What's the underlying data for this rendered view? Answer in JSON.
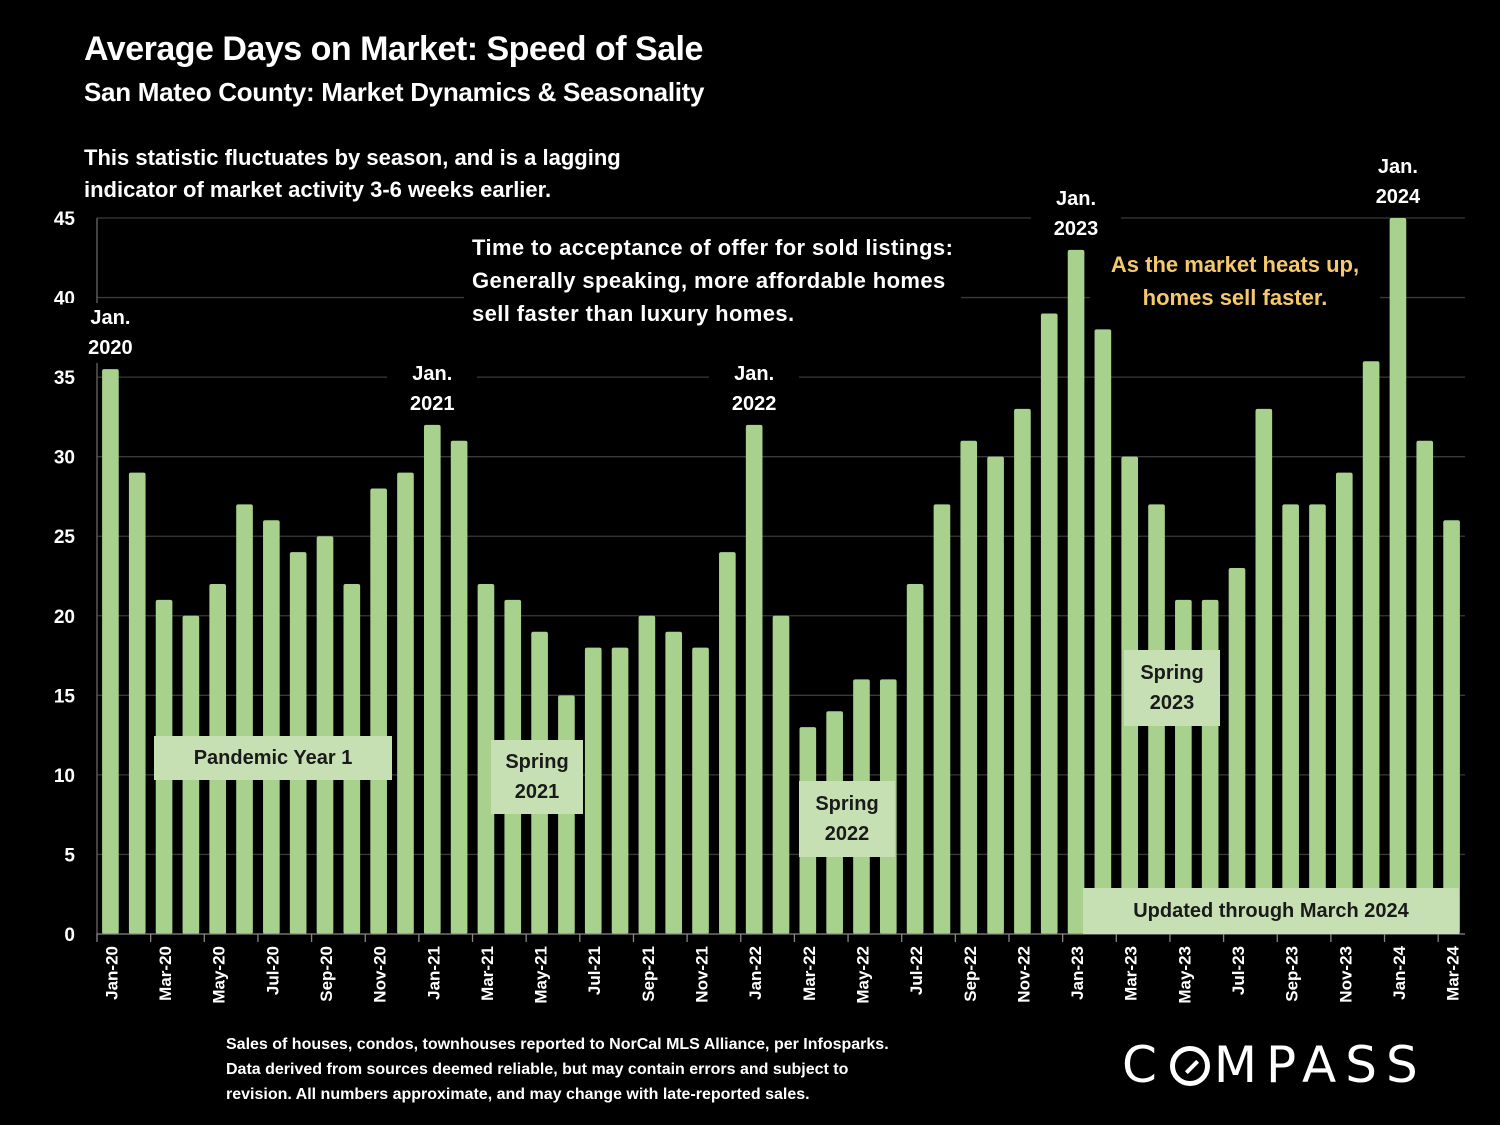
{
  "header": {
    "title": "Average Days on Market:  Speed of Sale",
    "subtitle": "San Mateo County: Market Dynamics & Seasonality"
  },
  "notes": {
    "left_line1": "This statistic fluctuates by season, and is a lagging",
    "left_line2": "indicator of market activity 3-6 weeks earlier.",
    "mid_line1": "Time to acceptance of offer for sold listings:",
    "mid_line2": "Generally speaking, more affordable homes",
    "mid_line3": "sell faster than luxury homes.",
    "gold_line1": "As the market heats up,",
    "gold_line2": "homes sell faster."
  },
  "footnote": {
    "line1": "Sales of houses, condos, townhouses reported to NorCal MLS Alliance, per Infosparks.",
    "line2": "Data derived from sources deemed reliable, but may contain errors and subject to",
    "line3": "revision. All numbers approximate, and may change with late-reported sales."
  },
  "logo": {
    "text_before": "C",
    "text_after": "MPASS"
  },
  "chart_data": {
    "type": "bar",
    "title": "Average Days on Market:  Speed of Sale",
    "xlabel": "",
    "ylabel": "",
    "ylim": [
      0,
      45
    ],
    "yticks": [
      0,
      5,
      10,
      15,
      20,
      25,
      30,
      35,
      40,
      45
    ],
    "grid": true,
    "bar_color": "#a9d18e",
    "categories": [
      "Jan-20",
      "Feb-20",
      "Mar-20",
      "Apr-20",
      "May-20",
      "Jun-20",
      "Jul-20",
      "Aug-20",
      "Sep-20",
      "Oct-20",
      "Nov-20",
      "Dec-20",
      "Jan-21",
      "Feb-21",
      "Mar-21",
      "Apr-21",
      "May-21",
      "Jun-21",
      "Jul-21",
      "Aug-21",
      "Sep-21",
      "Oct-21",
      "Nov-21",
      "Dec-21",
      "Jan-22",
      "Feb-22",
      "Mar-22",
      "Apr-22",
      "May-22",
      "Jun-22",
      "Jul-22",
      "Aug-22",
      "Sep-22",
      "Oct-22",
      "Nov-22",
      "Dec-22",
      "Jan-23",
      "Feb-23",
      "Mar-23",
      "Apr-23",
      "May-23",
      "Jun-23",
      "Jul-23",
      "Aug-23",
      "Sep-23",
      "Oct-23",
      "Nov-23",
      "Dec-23",
      "Jan-24",
      "Feb-24",
      "Mar-24"
    ],
    "values": [
      35.5,
      29,
      21,
      20,
      22,
      27,
      26,
      24,
      25,
      22,
      28,
      29,
      32,
      31,
      22,
      21,
      19,
      15,
      18,
      18,
      20,
      19,
      18,
      24,
      32,
      20,
      13,
      14,
      16,
      16,
      22,
      27,
      31,
      30,
      33,
      39,
      43,
      38,
      30,
      27,
      21,
      21,
      23,
      33,
      27,
      27,
      29,
      36,
      45,
      31,
      26
    ],
    "tick_labels_every": 2,
    "annotations": [
      {
        "text_line1": "Jan.",
        "text_line2": "2020",
        "at": "Jan-20"
      },
      {
        "text_line1": "Jan.",
        "text_line2": "2021",
        "at": "Jan-21"
      },
      {
        "text_line1": "Jan.",
        "text_line2": "2022",
        "at": "Jan-22"
      },
      {
        "text_line1": "Jan.",
        "text_line2": "2023",
        "at": "Jan-23"
      },
      {
        "text_line1": "Jan.",
        "text_line2": "2024",
        "at": "Jan-24"
      }
    ],
    "period_labels": [
      {
        "line1": "Pandemic Year 1",
        "line2": ""
      },
      {
        "line1": "Spring",
        "line2": "2021"
      },
      {
        "line1": "Spring",
        "line2": "2022"
      },
      {
        "line1": "Spring",
        "line2": "2023"
      },
      {
        "line1": "Updated through March 2024",
        "line2": ""
      }
    ]
  }
}
